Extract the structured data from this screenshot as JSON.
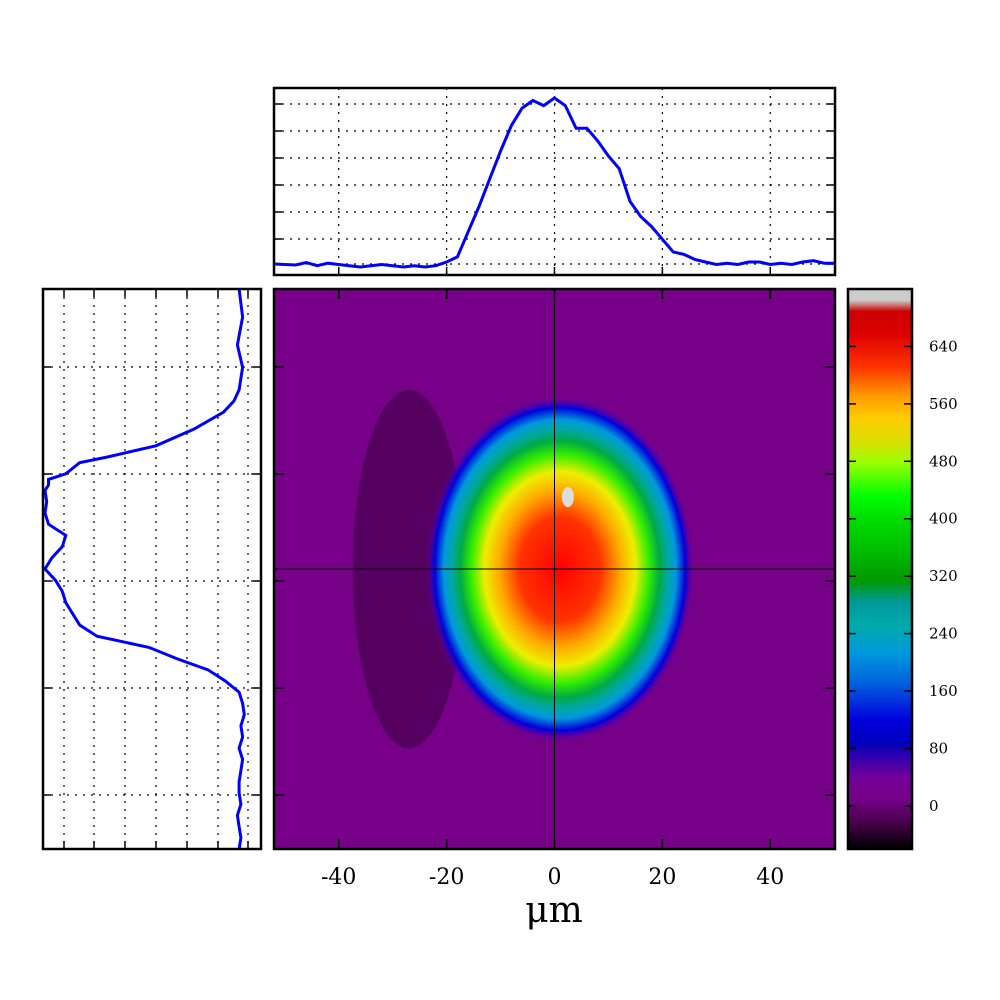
{
  "chart_data": {
    "type": "heatmap",
    "main": {
      "xlabel": "μm",
      "xlim": [
        -52,
        52
      ],
      "ylim": [
        -50,
        50
      ],
      "x_ticks": [
        -40,
        -20,
        0,
        20,
        40
      ],
      "x_tick_labels": [
        "-40",
        "-20",
        "0",
        "20",
        "40"
      ],
      "crosshair": {
        "x": 0,
        "y": 0
      },
      "beam_center": {
        "x": 1,
        "y": 0
      },
      "beam_semi_axes": {
        "x": 25,
        "y": 31
      }
    },
    "colorbar": {
      "colormap": "nipy_spectral",
      "vmin": -60,
      "vmax": 720,
      "ticks": [
        0,
        80,
        160,
        240,
        320,
        400,
        480,
        560,
        640
      ],
      "tick_labels": [
        "0",
        "80",
        "160",
        "240",
        "320",
        "400",
        "480",
        "560",
        "640"
      ]
    },
    "series": [
      {
        "panel": "top",
        "type": "line",
        "color": "#0000ff",
        "grid": true,
        "ylim": [
          0,
          670
        ],
        "x": [
          -52,
          -48,
          -46,
          -44,
          -42,
          -40,
          -38,
          -36,
          -34,
          -32,
          -30,
          -28,
          -26,
          -24,
          -22,
          -20,
          -18,
          -16,
          -14,
          -12,
          -10,
          -8,
          -6,
          -4,
          -2,
          0,
          2,
          4,
          6,
          8,
          10,
          12,
          14,
          16,
          18,
          20,
          22,
          24,
          26,
          28,
          30,
          32,
          34,
          36,
          38,
          40,
          42,
          44,
          46,
          48,
          50,
          52
        ],
        "y": [
          12,
          8,
          18,
          5,
          15,
          10,
          5,
          0,
          5,
          10,
          5,
          0,
          5,
          0,
          5,
          20,
          40,
          140,
          240,
          350,
          460,
          560,
          630,
          660,
          640,
          670,
          640,
          550,
          550,
          500,
          440,
          390,
          260,
          200,
          160,
          110,
          60,
          50,
          30,
          20,
          10,
          15,
          10,
          20,
          20,
          10,
          15,
          10,
          20,
          25,
          15,
          15
        ]
      },
      {
        "panel": "left",
        "type": "line",
        "color": "#0000ff",
        "grid": true,
        "xlim": [
          0,
          600
        ],
        "y": [
          50,
          45,
          40,
          36,
          32,
          30,
          28,
          25,
          22,
          20,
          19,
          17,
          16,
          15,
          14,
          12,
          10,
          8,
          6,
          4,
          2,
          0,
          -2,
          -4,
          -6,
          -8,
          -10,
          -12,
          -14,
          -16,
          -18,
          -20,
          -22,
          -24,
          -26,
          -28,
          -30,
          -32,
          -34,
          -36,
          -38,
          -40,
          -42,
          -44,
          -46,
          -48,
          -50
        ],
        "x": [
          560,
          570,
          555,
          570,
          560,
          545,
          515,
          430,
          320,
          180,
          100,
          60,
          10,
          10,
          0,
          5,
          0,
          10,
          60,
          50,
          20,
          0,
          30,
          50,
          60,
          80,
          100,
          150,
          300,
          380,
          470,
          520,
          560,
          570,
          575,
          565,
          570,
          560,
          570,
          565,
          560,
          560,
          565,
          555,
          560,
          565,
          560
        ]
      }
    ]
  }
}
